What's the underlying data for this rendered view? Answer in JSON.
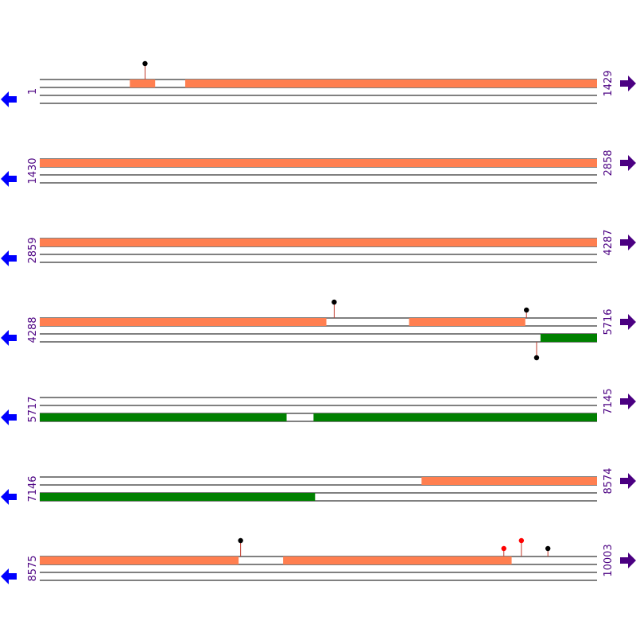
{
  "colors": {
    "forward_feature": "#ff7f50",
    "reverse_feature": "#008000",
    "start_label": "#4b0082",
    "end_label": "#4b0082",
    "left_arrow": "#0000ff",
    "right_arrow": "#4b0082",
    "track_line": "#000000",
    "pin_stem": "#c0392b",
    "pin_head_black": "#000000",
    "pin_head_red": "#ff0000"
  },
  "icons": {
    "left": "left-arrow-icon",
    "right": "right-arrow-icon"
  },
  "rows": [
    {
      "start": "1",
      "end": "1429",
      "range": [
        1,
        1429
      ],
      "features": [
        {
          "strand": "forward",
          "from": 232,
          "to": 296
        },
        {
          "strand": "forward",
          "from": 374,
          "to": 1429
        }
      ],
      "pins": [
        {
          "pos": 271,
          "strand": "forward",
          "level": "high",
          "color": "black"
        }
      ]
    },
    {
      "start": "1430",
      "end": "2858",
      "range": [
        1430,
        2858
      ],
      "features": [
        {
          "strand": "forward",
          "from": 1430,
          "to": 2858
        }
      ],
      "pins": []
    },
    {
      "start": "2859",
      "end": "4287",
      "range": [
        2859,
        4287
      ],
      "features": [
        {
          "strand": "forward",
          "from": 2859,
          "to": 4287
        }
      ],
      "pins": []
    },
    {
      "start": "4288",
      "end": "5716",
      "range": [
        4288,
        5716
      ],
      "features": [
        {
          "strand": "forward",
          "from": 4288,
          "to": 5022
        },
        {
          "strand": "forward",
          "from": 5235,
          "to": 5532
        },
        {
          "strand": "reverse",
          "from": 5572,
          "to": 5716
        }
      ],
      "pins": [
        {
          "pos": 5043,
          "strand": "forward",
          "level": "high",
          "color": "black"
        },
        {
          "pos": 5536,
          "strand": "forward",
          "level": "low",
          "color": "black"
        },
        {
          "pos": 5562,
          "strand": "reverse",
          "level": "high",
          "color": "black"
        }
      ]
    },
    {
      "start": "5717",
      "end": "7145",
      "range": [
        5717,
        7145
      ],
      "features": [
        {
          "strand": "reverse",
          "from": 5717,
          "to": 6349
        },
        {
          "strand": "reverse",
          "from": 6419,
          "to": 7145
        }
      ],
      "pins": []
    },
    {
      "start": "7146",
      "end": "8574",
      "range": [
        7146,
        8574
      ],
      "features": [
        {
          "strand": "forward",
          "from": 8125,
          "to": 8574
        },
        {
          "strand": "reverse",
          "from": 7146,
          "to": 7851
        }
      ],
      "pins": []
    },
    {
      "start": "8575",
      "end": "10003",
      "range": [
        8575,
        10003
      ],
      "features": [
        {
          "strand": "forward",
          "from": 8575,
          "to": 9084
        },
        {
          "strand": "forward",
          "from": 9199,
          "to": 9784
        }
      ],
      "pins": [
        {
          "pos": 9090,
          "strand": "forward",
          "level": "high",
          "color": "black"
        },
        {
          "pos": 9765,
          "strand": "forward",
          "level": "low",
          "color": "red"
        },
        {
          "pos": 9810,
          "strand": "forward",
          "level": "high",
          "color": "red"
        },
        {
          "pos": 9878,
          "strand": "forward",
          "level": "low",
          "color": "black"
        }
      ]
    }
  ]
}
